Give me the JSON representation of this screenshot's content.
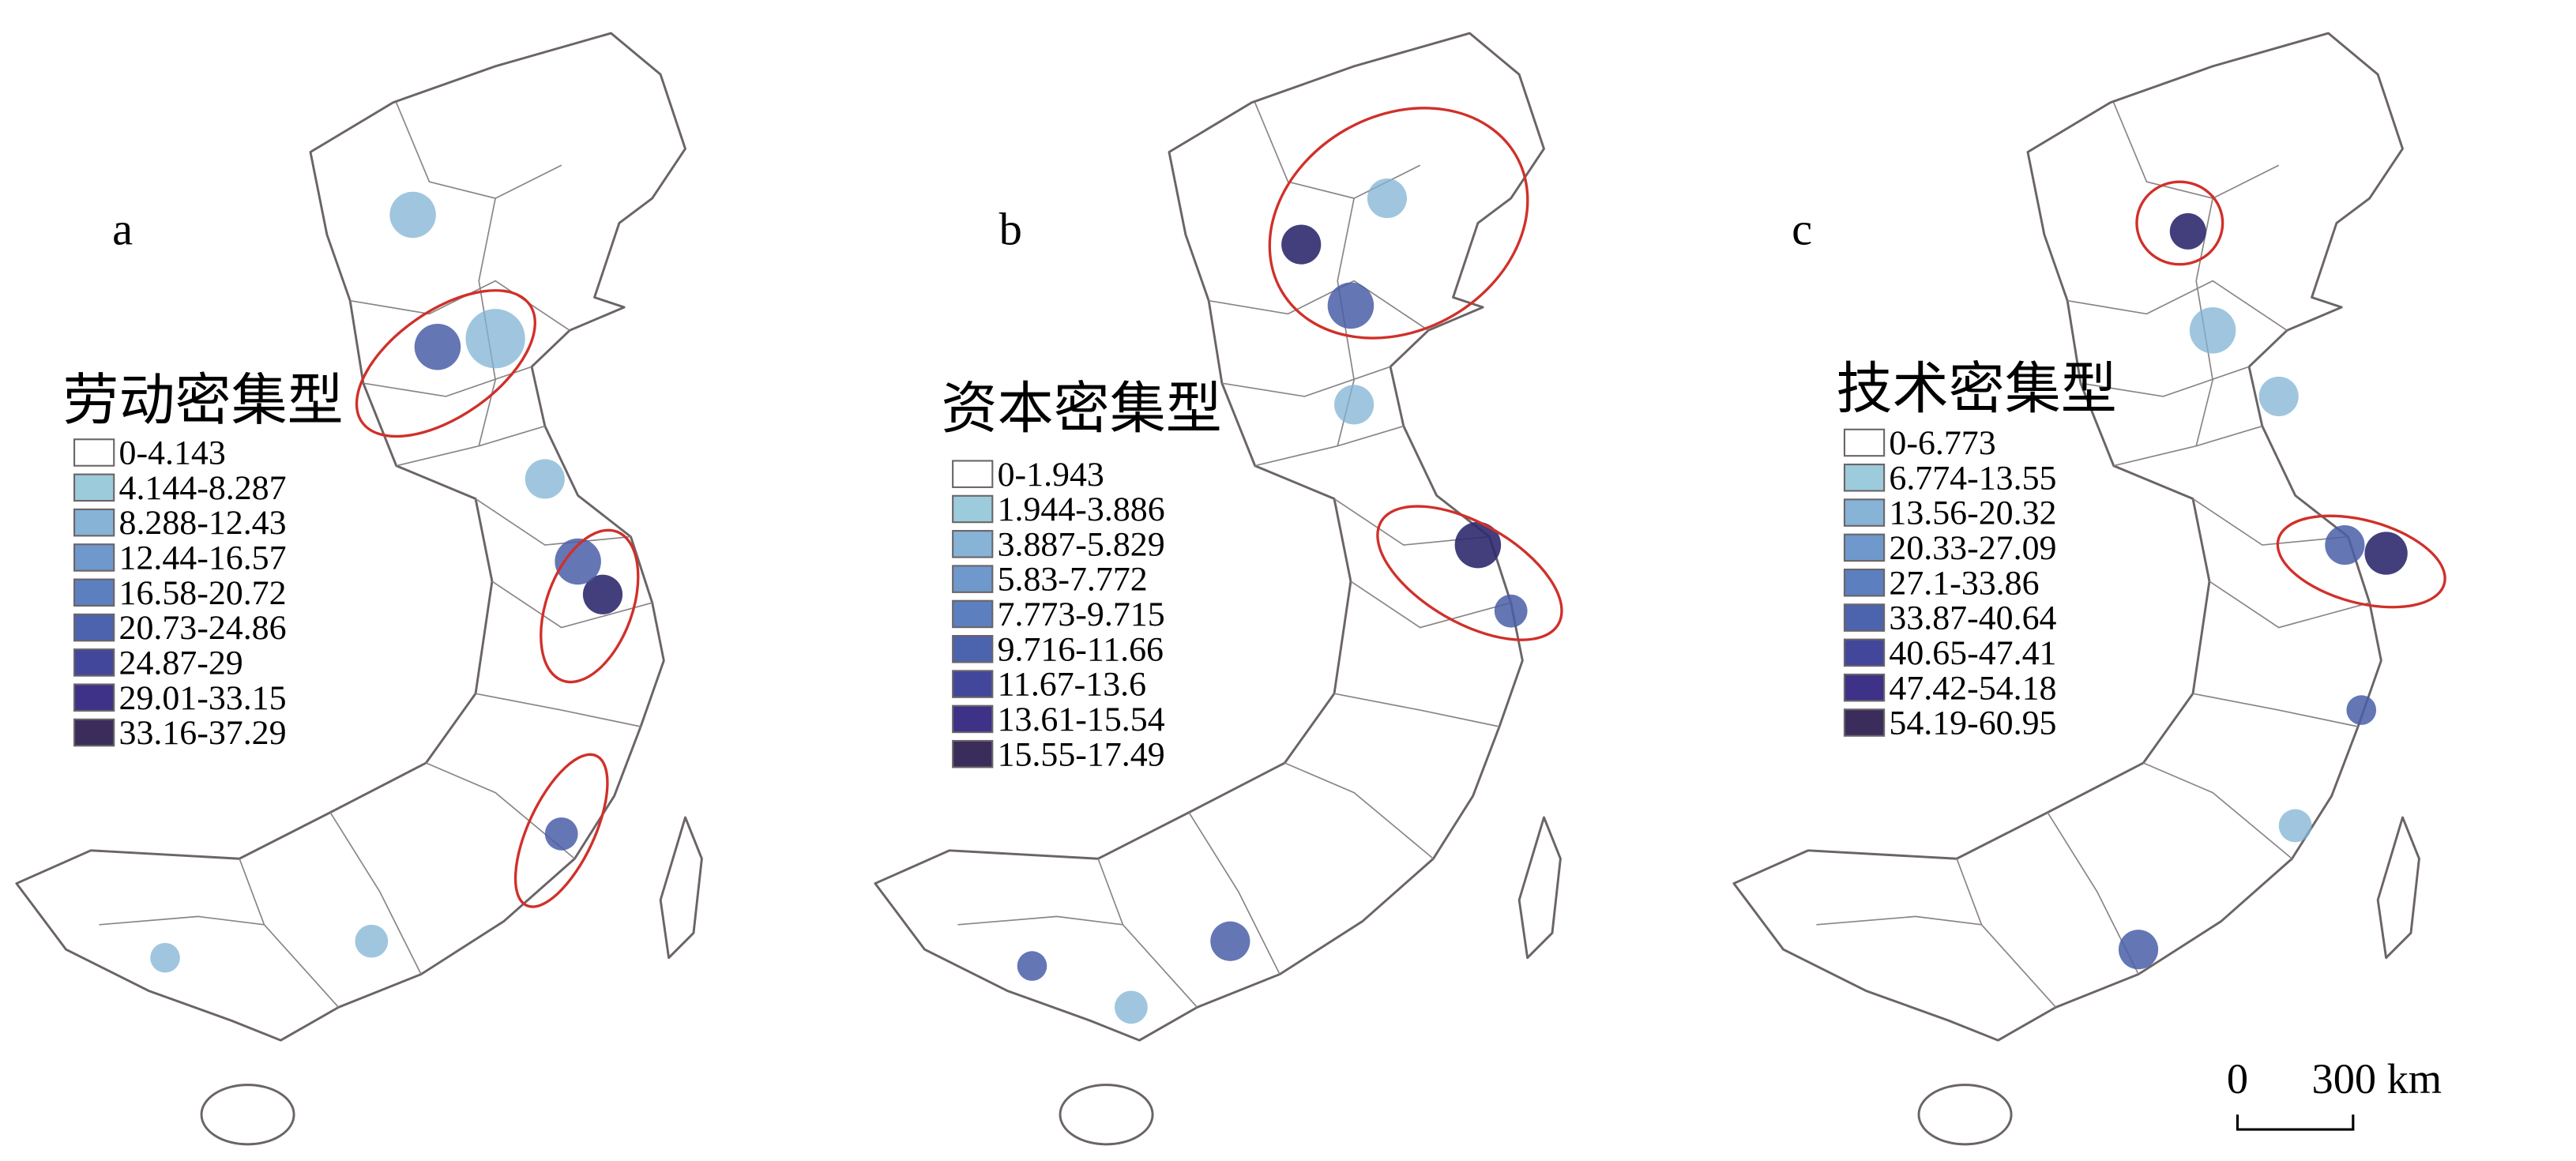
{
  "panels": [
    {
      "label": "a",
      "legend_title": "劳动密集型",
      "classes": [
        "0-4.143",
        "4.144-8.287",
        "8.288-12.43",
        "12.44-16.57",
        "16.58-20.72",
        "20.73-24.86",
        "24.87-29",
        "29.01-33.15",
        "33.16-37.29"
      ],
      "colors": [
        "#ffffff",
        "#9ccbdc",
        "#86b3d6",
        "#6f98cc",
        "#5c7fbf",
        "#4c63ae",
        "#43479c",
        "#3d3288",
        "#3b2d5b"
      ]
    },
    {
      "label": "b",
      "legend_title": "资本密集型",
      "classes": [
        "0-1.943",
        "1.944-3.886",
        "3.887-5.829",
        "5.83-7.772",
        "7.773-9.715",
        "9.716-11.66",
        "11.67-13.6",
        "13.61-15.54",
        "15.55-17.49"
      ],
      "colors": [
        "#ffffff",
        "#9ccbdc",
        "#86b3d6",
        "#6f98cc",
        "#5c7fbf",
        "#4c63ae",
        "#43479c",
        "#3d3288",
        "#3b2d5b"
      ]
    },
    {
      "label": "c",
      "legend_title": "技术密集型",
      "classes": [
        "0-6.773",
        "6.774-13.55",
        "13.56-20.32",
        "20.33-27.09",
        "27.1-33.86",
        "33.87-40.64",
        "40.65-47.41",
        "47.42-54.18",
        "54.19-60.95"
      ],
      "colors": [
        "#ffffff",
        "#9ccbdc",
        "#86b3d6",
        "#6f98cc",
        "#5c7fbf",
        "#4c63ae",
        "#43479c",
        "#3d3288",
        "#3b2d5b"
      ]
    }
  ],
  "scale_bar": {
    "zero": "0",
    "distance": "300 km"
  }
}
